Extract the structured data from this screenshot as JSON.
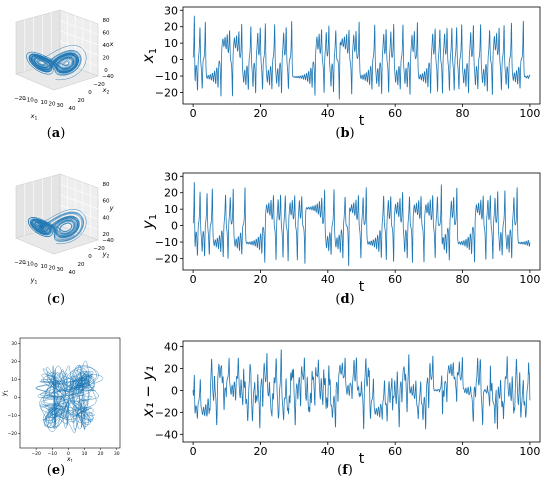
{
  "panel_labels": [
    {
      "open": "(",
      "letter": "a",
      "close": ")"
    },
    {
      "open": "(",
      "letter": "b",
      "close": ")"
    },
    {
      "open": "(",
      "letter": "c",
      "close": ")"
    },
    {
      "open": "(",
      "letter": "d",
      "close": ")"
    },
    {
      "open": "(",
      "letter": "e",
      "close": ")"
    },
    {
      "open": "(",
      "letter": "f",
      "close": ")"
    }
  ],
  "chart_data": [
    {
      "id": "a",
      "type": "line3d",
      "description_axes": {
        "xlabel": "x1",
        "ylabel": "x2",
        "zlabel": "x3"
      },
      "x_ticks": [
        "−20",
        "−10",
        "0",
        "10",
        "20",
        "30"
      ],
      "y_ticks": [
        "−40",
        "−20",
        "0",
        "20",
        "40"
      ],
      "z_ticks": [
        "0",
        "20",
        "40",
        "60",
        "80"
      ],
      "color": "#1f77b4"
    },
    {
      "id": "b",
      "type": "line",
      "xlabel": "t",
      "ylabel_base": "x",
      "ylabel_sub": "1",
      "xlim": [
        -3,
        103
      ],
      "ylim": [
        -27,
        32
      ],
      "x_ticks": [
        0,
        20,
        40,
        60,
        80,
        100
      ],
      "y_ticks": [
        -20,
        -10,
        0,
        10,
        20,
        30
      ],
      "seed": 11,
      "amp": 25,
      "color": "#1f77b4"
    },
    {
      "id": "c",
      "type": "line3d",
      "description_axes": {
        "xlabel": "y1",
        "ylabel": "y2",
        "zlabel": "y3"
      },
      "x_ticks": [
        "−20",
        "−10",
        "0",
        "10",
        "20",
        "30"
      ],
      "y_ticks": [
        "−40",
        "−20",
        "0",
        "20",
        "40"
      ],
      "z_ticks": [
        "20",
        "40",
        "60",
        "80"
      ],
      "color": "#1f77b4"
    },
    {
      "id": "d",
      "type": "line",
      "xlabel": "t",
      "ylabel_base": "y",
      "ylabel_sub": "1",
      "xlim": [
        -3,
        103
      ],
      "ylim": [
        -27,
        32
      ],
      "x_ticks": [
        0,
        20,
        40,
        60,
        80,
        100
      ],
      "y_ticks": [
        -20,
        -10,
        0,
        10,
        20,
        30
      ],
      "seed": 23,
      "amp": 25,
      "color": "#1f77b4"
    },
    {
      "id": "e",
      "type": "scatter-line",
      "xlabel": "x1",
      "ylabel": "y1",
      "xlim": [
        -30,
        32
      ],
      "ylim": [
        -28,
        33
      ],
      "x_ticks": [
        "−20",
        "−10",
        "0",
        "10",
        "20",
        "30"
      ],
      "y_ticks": [
        "−20",
        "−10",
        "0",
        "10",
        "20",
        "30"
      ],
      "color": "#1f77b4"
    },
    {
      "id": "f",
      "type": "line",
      "xlabel": "t",
      "ylabel_text": "x₁ − y₁",
      "xlim": [
        -3,
        103
      ],
      "ylim": [
        -47,
        45
      ],
      "x_ticks": [
        0,
        20,
        40,
        60,
        80,
        100
      ],
      "y_ticks": [
        -40,
        -20,
        0,
        20,
        40
      ],
      "seed": 37,
      "amp": 42,
      "color": "#1f77b4"
    }
  ]
}
